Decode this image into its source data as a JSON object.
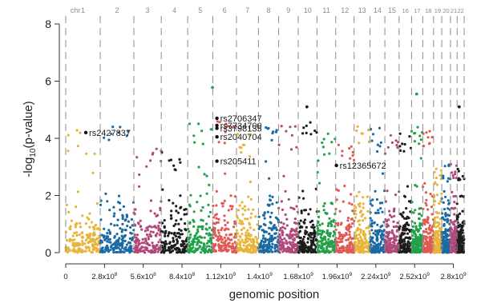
{
  "chart_data": {
    "type": "scatter",
    "subtype": "manhattan",
    "xlabel": "genomic position",
    "ylabel_main": "-log",
    "ylabel_sub": "10",
    "ylabel_tail": "(p-value)",
    "ylim": [
      0,
      8
    ],
    "yticks": [
      0,
      2,
      4,
      6,
      8
    ],
    "xlim": [
      0,
      2930000000
    ],
    "xticks": [
      {
        "value": 0,
        "base": "0",
        "exp": ""
      },
      {
        "value": 280000000,
        "base": "2.8x10",
        "exp": "8"
      },
      {
        "value": 560000000,
        "base": "5.6x10",
        "exp": "8"
      },
      {
        "value": 840000000,
        "base": "8.4x10",
        "exp": "8"
      },
      {
        "value": 1120000000,
        "base": "1.12x10",
        "exp": "9"
      },
      {
        "value": 1400000000,
        "base": "1.4x10",
        "exp": "9"
      },
      {
        "value": 1680000000,
        "base": "1.68x10",
        "exp": "9"
      },
      {
        "value": 1960000000,
        "base": "1.96x10",
        "exp": "9"
      },
      {
        "value": 2240000000,
        "base": "2.24x10",
        "exp": "9"
      },
      {
        "value": 2520000000,
        "base": "2.52x10",
        "exp": "9"
      },
      {
        "value": 2800000000,
        "base": "2.8x10",
        "exp": "9"
      }
    ],
    "chr_header": "chr",
    "grid": false,
    "legend": "none",
    "chromosomes": [
      {
        "label": "1",
        "start": 0,
        "end": 249000000,
        "color": "#e8b43a",
        "peak": 4.3
      },
      {
        "label": "2",
        "start": 249000000,
        "end": 492000000,
        "color": "#1a6aa3",
        "peak": 4.6
      },
      {
        "label": "3",
        "start": 492000000,
        "end": 690000000,
        "color": "#b0497a",
        "peak": 3.7
      },
      {
        "label": "4",
        "start": 690000000,
        "end": 881000000,
        "color": "#1c1c1c",
        "peak": 3.6
      },
      {
        "label": "5",
        "start": 881000000,
        "end": 1062000000,
        "color": "#23a04a",
        "peak": 4.7
      },
      {
        "label": "6",
        "start": 1062000000,
        "end": 1233000000,
        "color": "#e05a55",
        "peak": 4.6
      },
      {
        "label": "7",
        "start": 1233000000,
        "end": 1392000000,
        "color": "#e8b43a",
        "peak": 4.2
      },
      {
        "label": "8",
        "start": 1392000000,
        "end": 1538000000,
        "color": "#1a6aa3",
        "peak": 4.6
      },
      {
        "label": "9",
        "start": 1538000000,
        "end": 1679000000,
        "color": "#b0497a",
        "peak": 4.5
      },
      {
        "label": "10",
        "start": 1679000000,
        "end": 1815000000,
        "color": "#1c1c1c",
        "peak": 4.6
      },
      {
        "label": "11",
        "start": 1815000000,
        "end": 1950000000,
        "color": "#23a04a",
        "peak": 4.2
      },
      {
        "label": "12",
        "start": 1950000000,
        "end": 2083000000,
        "color": "#e05a55",
        "peak": 4.0
      },
      {
        "label": "13",
        "start": 2083000000,
        "end": 2198000000,
        "color": "#e8b43a",
        "peak": 4.6
      },
      {
        "label": "14",
        "start": 2198000000,
        "end": 2305000000,
        "color": "#1a6aa3",
        "peak": 4.4
      },
      {
        "label": "15",
        "start": 2305000000,
        "end": 2408000000,
        "color": "#b0497a",
        "peak": 4.2
      },
      {
        "label": "16",
        "start": 2408000000,
        "end": 2498000000,
        "color": "#1c1c1c",
        "peak": 4.2
      },
      {
        "label": "17",
        "start": 2498000000,
        "end": 2579000000,
        "color": "#23a04a",
        "peak": 4.4
      },
      {
        "label": "18",
        "start": 2579000000,
        "end": 2657000000,
        "color": "#e05a55",
        "peak": 4.3
      },
      {
        "label": "19",
        "start": 2657000000,
        "end": 2716000000,
        "color": "#e8b43a",
        "peak": 3.0
      },
      {
        "label": "20",
        "start": 2716000000,
        "end": 2779000000,
        "color": "#1a6aa3",
        "peak": 3.1
      },
      {
        "label": "21",
        "start": 2779000000,
        "end": 2827000000,
        "color": "#b0497a",
        "peak": 3.1
      },
      {
        "label": "22",
        "start": 2827000000,
        "end": 2878000000,
        "color": "#1c1c1c",
        "peak": 3.1
      }
    ],
    "annotations": [
      {
        "label": "rs2427837",
        "x": 145000000,
        "y": 4.2
      },
      {
        "label": "rs2706347",
        "x": 1092000000,
        "y": 4.7
      },
      {
        "label": "rs7734700",
        "x": 1092000000,
        "y": 4.45
      },
      {
        "label": "rs3798135",
        "x": 1092000000,
        "y": 4.35
      },
      {
        "label": "rs2040704",
        "x": 1092000000,
        "y": 4.05
      },
      {
        "label": "rs205411",
        "x": 1092000000,
        "y": 3.2
      },
      {
        "label": "rs12365672",
        "x": 1955000000,
        "y": 3.05
      }
    ],
    "highlight_points": [
      {
        "x": 1060000000,
        "y": 5.78,
        "color": "#23a04a"
      },
      {
        "x": 1742000000,
        "y": 5.1,
        "color": "#1c1c1c"
      },
      {
        "x": 2535000000,
        "y": 5.55,
        "color": "#23a04a"
      },
      {
        "x": 2842000000,
        "y": 5.1,
        "color": "#1c1c1c"
      }
    ]
  }
}
